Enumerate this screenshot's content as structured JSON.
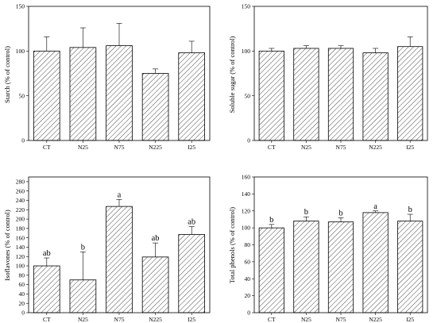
{
  "chart_data": [
    {
      "type": "bar",
      "ylabel": "Starch  (% of control)",
      "categories": [
        "CT",
        "N25",
        "N75",
        "N225",
        "I25"
      ],
      "values": [
        100,
        104,
        106,
        75,
        98
      ],
      "errors": [
        16,
        22,
        25,
        5,
        13
      ],
      "labels": [
        "",
        "",
        "",
        "",
        ""
      ],
      "ylim": [
        0,
        150
      ],
      "yticks": [
        0,
        50,
        100,
        150
      ]
    },
    {
      "type": "bar",
      "ylabel": "Soluble sugar (% of control)",
      "categories": [
        "CT",
        "N25",
        "N75",
        "N225",
        "I25"
      ],
      "values": [
        100,
        103,
        103,
        98,
        105
      ],
      "errors": [
        3,
        3,
        3,
        5,
        11
      ],
      "labels": [
        "",
        "",
        "",
        "",
        ""
      ],
      "ylim": [
        0,
        150
      ],
      "yticks": [
        0,
        50,
        100,
        150
      ]
    },
    {
      "type": "bar",
      "ylabel": "Isoflavones (% of control)",
      "categories": [
        "CT",
        "N25",
        "N75",
        "N225",
        "I25"
      ],
      "values": [
        100,
        70,
        227,
        119,
        167
      ],
      "errors": [
        17,
        60,
        15,
        30,
        17
      ],
      "labels": [
        "ab",
        "b",
        "a",
        "ab",
        "ab"
      ],
      "ylim": [
        0,
        290
      ],
      "yticks": [
        0,
        20,
        40,
        60,
        80,
        100,
        120,
        140,
        160,
        180,
        200,
        220,
        240,
        260,
        280
      ]
    },
    {
      "type": "bar",
      "ylabel": "Total phenols (% of control)",
      "categories": [
        "CT",
        "N25",
        "N75",
        "N225",
        "I25"
      ],
      "values": [
        100,
        108,
        107,
        118,
        108
      ],
      "errors": [
        4,
        5,
        5,
        2,
        8
      ],
      "labels": [
        "b",
        "b",
        "b",
        "a",
        "b"
      ],
      "ylim": [
        0,
        160
      ],
      "yticks": [
        0,
        20,
        40,
        60,
        80,
        100,
        120,
        140,
        160
      ]
    }
  ]
}
